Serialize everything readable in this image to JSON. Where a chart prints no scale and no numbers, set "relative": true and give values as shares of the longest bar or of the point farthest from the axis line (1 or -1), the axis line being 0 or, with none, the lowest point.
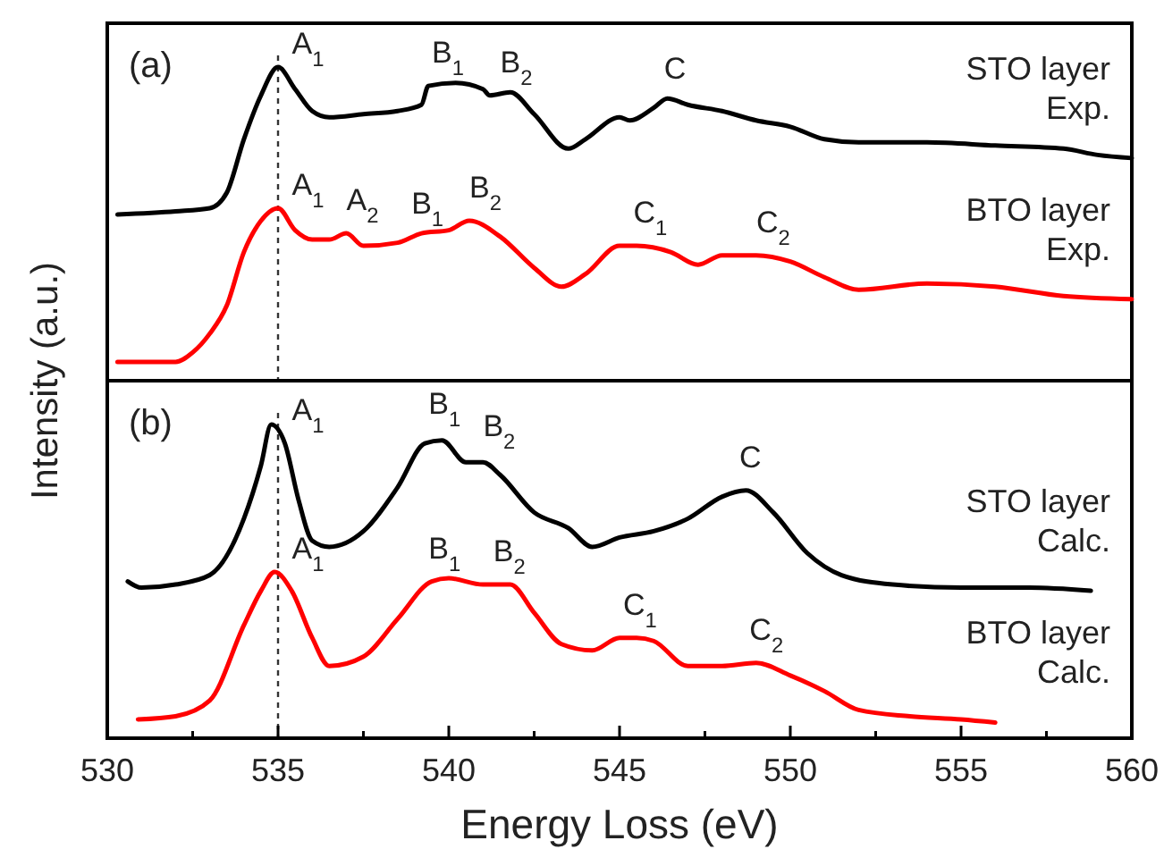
{
  "chart_data": [
    {
      "type": "line",
      "title": "(a)",
      "ylabel": "Intensity (a.u.)",
      "relative": true,
      "xlim": [
        530,
        560
      ],
      "tick_labels": false,
      "line_style": "solid",
      "marker": "none",
      "ref_lines": [
        {
          "axis": "x",
          "value": 535,
          "line_style": "dashed"
        }
      ],
      "annotations": [
        {
          "text": "A$_{1}$",
          "x": 535.3,
          "y": 0.97
        },
        {
          "text": "B$_{1}$",
          "x": 539.4,
          "y": 0.94
        },
        {
          "text": "B$_{2}$",
          "x": 541.4,
          "y": 0.91
        },
        {
          "text": "C",
          "x": 546.2,
          "y": 0.89
        },
        {
          "text": "A$_{1}$",
          "x": 535.3,
          "y": 0.52
        },
        {
          "text": "A$_{2}$",
          "x": 536.9,
          "y": 0.47
        },
        {
          "text": "B$_{1}$",
          "x": 538.8,
          "y": 0.46
        },
        {
          "text": "B$_{2}$",
          "x": 540.5,
          "y": 0.51
        },
        {
          "text": "C$_{1}$",
          "x": 545.3,
          "y": 0.43
        },
        {
          "text": "C$_{2}$",
          "x": 548.9,
          "y": 0.4
        }
      ],
      "series": [
        {
          "name": "STO layer Exp.",
          "color": "#000000",
          "x": [
            530.3,
            532,
            533,
            533.5,
            534,
            534.5,
            535,
            535.5,
            536,
            536.5,
            537.5,
            538.5,
            539.2,
            539.4,
            540.2,
            541,
            541.2,
            541.8,
            542.5,
            543.5,
            544,
            545,
            545.3,
            546,
            546.4,
            547,
            548,
            549,
            550,
            551,
            552,
            554,
            556,
            558,
            559,
            560
          ],
          "values": [
            0.53,
            0.54,
            0.55,
            0.6,
            0.77,
            0.91,
            1.0,
            0.93,
            0.86,
            0.84,
            0.85,
            0.86,
            0.88,
            0.94,
            0.95,
            0.93,
            0.91,
            0.92,
            0.85,
            0.74,
            0.77,
            0.84,
            0.83,
            0.87,
            0.9,
            0.88,
            0.86,
            0.83,
            0.81,
            0.77,
            0.76,
            0.76,
            0.75,
            0.74,
            0.72,
            0.71
          ]
        },
        {
          "name": "BTO layer Exp.",
          "color": "#ff0000",
          "x": [
            530.3,
            531,
            532,
            532.5,
            533,
            533.5,
            534,
            534.5,
            535,
            535.5,
            536,
            536.5,
            537,
            537.5,
            538.5,
            539.2,
            540,
            540.6,
            541.5,
            542.5,
            543.3,
            544,
            545,
            545.5,
            546.5,
            547.3,
            548,
            549,
            550,
            551,
            552,
            554,
            556,
            558,
            560
          ],
          "values": [
            0.06,
            0.06,
            0.06,
            0.09,
            0.15,
            0.24,
            0.41,
            0.51,
            0.55,
            0.48,
            0.45,
            0.45,
            0.47,
            0.43,
            0.44,
            0.47,
            0.48,
            0.51,
            0.46,
            0.36,
            0.3,
            0.34,
            0.43,
            0.43,
            0.41,
            0.37,
            0.4,
            0.4,
            0.38,
            0.33,
            0.29,
            0.31,
            0.3,
            0.27,
            0.26
          ]
        }
      ]
    },
    {
      "type": "line",
      "title": "(b)",
      "xlabel": "Energy Loss (eV)",
      "relative": true,
      "xlim": [
        530,
        560
      ],
      "xticks": [
        530,
        {
          "value": 532.5,
          "label": null
        },
        535,
        {
          "value": 537.5,
          "label": null
        },
        540,
        {
          "value": 542.5,
          "label": null
        },
        545,
        {
          "value": 547.5,
          "label": null
        },
        550,
        {
          "value": 552.5,
          "label": null
        },
        555,
        {
          "value": 557.5,
          "label": null
        },
        560
      ],
      "tick_labels": "x",
      "line_style": "solid",
      "marker": "none",
      "ref_lines": [
        {
          "axis": "x",
          "value": 535,
          "line_style": "dashed"
        }
      ],
      "annotations": [
        {
          "text": "A$_{1}$",
          "x": 535.3,
          "y": 0.94
        },
        {
          "text": "B$_{1}$",
          "x": 539.3,
          "y": 0.96
        },
        {
          "text": "B$_{2}$",
          "x": 540.9,
          "y": 0.89
        },
        {
          "text": "C",
          "x": 548.4,
          "y": 0.79
        },
        {
          "text": "A$_{1}$",
          "x": 535.3,
          "y": 0.5
        },
        {
          "text": "B$_{1}$",
          "x": 539.3,
          "y": 0.5
        },
        {
          "text": "B$_{2}$",
          "x": 541.2,
          "y": 0.49
        },
        {
          "text": "C$_{1}$",
          "x": 545,
          "y": 0.32
        },
        {
          "text": "C$_{2}$",
          "x": 548.7,
          "y": 0.24
        }
      ],
      "series": [
        {
          "name": "STO layer Calc.",
          "color": "#000000",
          "x": [
            530.6,
            531,
            532,
            533,
            534,
            534.5,
            534.8,
            535.2,
            535.6,
            536,
            536.5,
            537.5,
            538.5,
            539.3,
            539.8,
            540.5,
            541,
            541.5,
            542.5,
            543.5,
            544.2,
            545,
            546,
            547,
            548,
            548.7,
            549.5,
            550.5,
            551.5,
            553,
            555,
            557,
            558.8
          ],
          "values": [
            0.5,
            0.48,
            0.49,
            0.52,
            0.7,
            0.87,
            1.0,
            0.94,
            0.76,
            0.63,
            0.61,
            0.66,
            0.8,
            0.94,
            0.95,
            0.88,
            0.88,
            0.84,
            0.72,
            0.67,
            0.61,
            0.64,
            0.66,
            0.7,
            0.77,
            0.79,
            0.72,
            0.59,
            0.52,
            0.49,
            0.48,
            0.48,
            0.47
          ]
        },
        {
          "name": "BTO layer Calc.",
          "color": "#ff0000",
          "x": [
            530.9,
            532,
            533,
            534,
            534.5,
            534.9,
            535.4,
            536,
            536.5,
            537.5,
            538.5,
            539.5,
            540,
            541,
            541.8,
            542.5,
            543.3,
            544.2,
            545,
            545.5,
            546,
            547,
            548,
            549,
            550,
            551,
            552,
            553.5,
            555,
            556
          ],
          "values": [
            0.06,
            0.07,
            0.12,
            0.36,
            0.47,
            0.53,
            0.47,
            0.32,
            0.23,
            0.26,
            0.38,
            0.5,
            0.51,
            0.49,
            0.49,
            0.4,
            0.3,
            0.28,
            0.32,
            0.32,
            0.31,
            0.23,
            0.23,
            0.24,
            0.2,
            0.15,
            0.09,
            0.07,
            0.06,
            0.05
          ]
        }
      ]
    }
  ]
}
